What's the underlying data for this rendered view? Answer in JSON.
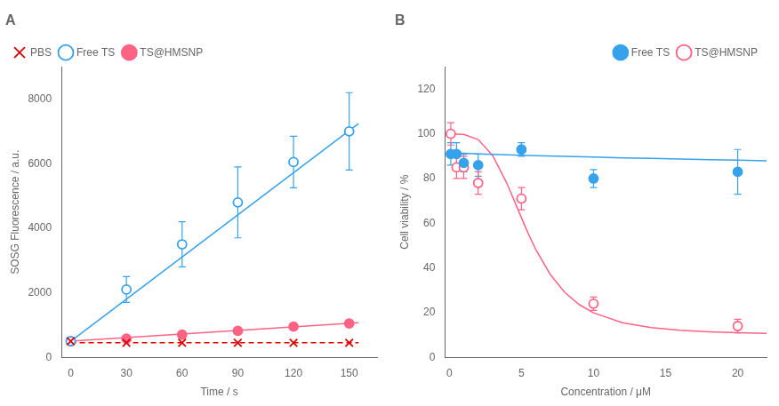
{
  "chart_data": [
    {
      "type": "scatter",
      "title": "A",
      "xlabel": "Time / s",
      "ylabel": "SOSG Fluorescence / a.u.",
      "xlim": [
        -5,
        165
      ],
      "ylim": [
        0,
        9000
      ],
      "xticks": [
        0,
        30,
        60,
        90,
        120,
        150
      ],
      "yticks": [
        0,
        2000,
        4000,
        6000,
        8000
      ],
      "grid": false,
      "legend": "upper left",
      "series": [
        {
          "name": "PBS",
          "color": "#dd0000",
          "marker": "x",
          "line_style": "dashed",
          "x": [
            0,
            30,
            60,
            90,
            120,
            150
          ],
          "values": [
            500,
            450,
            450,
            450,
            450,
            450
          ],
          "fit": {
            "x": [
              0,
              155
            ],
            "values": [
              450,
              450
            ]
          }
        },
        {
          "name": "Free TS",
          "marker": "circle_open",
          "line_style": "solid",
          "x": [
            0,
            30,
            60,
            90,
            120,
            150
          ],
          "values": [
            500,
            2100,
            3500,
            4800,
            6050,
            7000
          ],
          "yerr": [
            0,
            400,
            700,
            1100,
            800,
            1200
          ],
          "fit": {
            "x": [
              0,
              155
            ],
            "values": [
              500,
              7242.5
            ]
          }
        },
        {
          "name": "TS@HMSNP",
          "marker": "circle",
          "line_style": "solid",
          "x": [
            0,
            30,
            60,
            90,
            120,
            150
          ],
          "values": [
            500,
            580,
            700,
            820,
            950,
            1050
          ],
          "yerr": [
            0,
            50,
            80,
            80,
            80,
            100
          ],
          "fit": {
            "x": [
              0,
              155
            ],
            "values": [
              500,
              1073.5
            ]
          }
        }
      ]
    },
    {
      "type": "scatter",
      "title": "B",
      "xlabel": "Concentration / μM",
      "ylabel": "Cell viability / %",
      "xlim": [
        -0.3,
        22
      ],
      "ylim": [
        0,
        130
      ],
      "xticks": [
        0,
        5,
        10,
        15,
        20
      ],
      "yticks": [
        0,
        20,
        40,
        60,
        80,
        100,
        120
      ],
      "grid": false,
      "legend": "upper right",
      "series": [
        {
          "name": "Free TS",
          "marker": "circle",
          "line_style": "solid",
          "x": [
            0.1,
            0.5,
            1.0,
            2.0,
            5.0,
            10.0,
            20.0
          ],
          "values": [
            91,
            91,
            87,
            86,
            93,
            80,
            83
          ],
          "yerr": [
            5,
            5,
            4,
            5,
            3,
            4,
            10
          ],
          "fit": {
            "x": [
              0.01,
              1,
              2,
              4,
              6,
              8,
              10,
              12,
              14,
              16,
              18,
              20,
              22
            ],
            "values": [
              91.4977,
              91.2745,
              91.0577,
              90.6481,
              90.2679,
              89.9138,
              89.5833,
              89.2742,
              88.9844,
              88.7121,
              88.4559,
              88.2143,
              87.9861
            ]
          }
        },
        {
          "name": "TS@HMSNP",
          "marker": "circle_open",
          "line_style": "solid",
          "x": [
            0.1,
            0.5,
            1.0,
            2.0,
            5.0,
            10.0,
            20.0
          ],
          "values": [
            100,
            85,
            85,
            78,
            71,
            24,
            14
          ],
          "yerr": [
            5,
            5,
            5,
            5,
            5,
            3,
            3
          ],
          "fit": {
            "x": [
              0.01,
              1,
              2,
              3,
              4,
              5,
              5.5,
              6,
              7,
              8,
              9,
              10,
              12,
              14,
              16,
              18,
              20,
              22
            ],
            "values": [
              100.0,
              99.77,
              97.464,
              90.367,
              77.769,
              62.437,
              55.0,
              48.2,
              37.062,
              29.103,
              23.626,
              19.885,
              15.507,
              13.295,
              12.094,
              11.397,
              10.971,
              10.698
            ]
          }
        }
      ]
    }
  ]
}
